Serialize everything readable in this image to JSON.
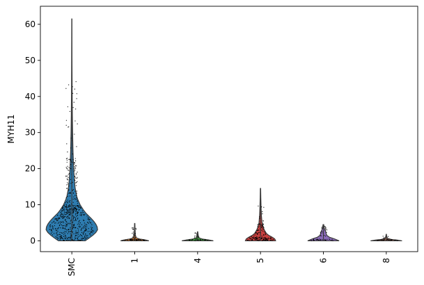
{
  "chart_data": {
    "type": "violin",
    "title": "",
    "xlabel": "",
    "ylabel": "MYH11",
    "ylim": [
      -3,
      65
    ],
    "yticks": [
      0,
      10,
      20,
      30,
      40,
      50,
      60
    ],
    "categories": [
      "SMC",
      "1",
      "4",
      "5",
      "6",
      "8"
    ],
    "grid": false,
    "series": [
      {
        "category": "SMC",
        "color": "#2e7cb0",
        "min": 0,
        "max": 61.5,
        "median": 3.8,
        "max_half_width": 0.82,
        "density": [
          [
            0,
            0.52
          ],
          [
            1,
            0.72
          ],
          [
            2,
            0.9
          ],
          [
            3,
            1.0
          ],
          [
            4,
            0.98
          ],
          [
            5,
            0.9
          ],
          [
            6,
            0.78
          ],
          [
            7,
            0.64
          ],
          [
            8,
            0.5
          ],
          [
            10,
            0.32
          ],
          [
            12,
            0.2
          ],
          [
            15,
            0.12
          ],
          [
            20,
            0.07
          ],
          [
            25,
            0.045
          ],
          [
            30,
            0.03
          ],
          [
            35,
            0.02
          ],
          [
            40,
            0.014
          ],
          [
            45,
            0.01
          ],
          [
            50,
            0.007
          ],
          [
            55,
            0.005
          ],
          [
            61.5,
            0.003
          ]
        ]
      },
      {
        "category": "1",
        "color": "#e8873a",
        "min": 0,
        "max": 4.8,
        "median": 0,
        "max_half_width": 0.45,
        "density": [
          [
            0,
            1.0
          ],
          [
            0.25,
            0.75
          ],
          [
            0.5,
            0.35
          ],
          [
            0.8,
            0.12
          ],
          [
            1.5,
            0.05
          ],
          [
            2.5,
            0.03
          ],
          [
            3.5,
            0.02
          ],
          [
            4.8,
            0.01
          ]
        ]
      },
      {
        "category": "4",
        "color": "#3f9b3f",
        "min": 0,
        "max": 2.5,
        "median": 0,
        "max_half_width": 0.5,
        "density": [
          [
            0,
            1.0
          ],
          [
            0.25,
            0.7
          ],
          [
            0.5,
            0.3
          ],
          [
            0.8,
            0.1
          ],
          [
            1.5,
            0.04
          ],
          [
            2.5,
            0.01
          ]
        ]
      },
      {
        "category": "5",
        "color": "#c8403f",
        "min": 0,
        "max": 14.5,
        "median": 0.6,
        "max_half_width": 0.48,
        "density": [
          [
            0,
            1.0
          ],
          [
            0.5,
            0.95
          ],
          [
            1,
            0.78
          ],
          [
            1.5,
            0.55
          ],
          [
            2,
            0.4
          ],
          [
            3,
            0.25
          ],
          [
            4,
            0.16
          ],
          [
            5,
            0.1
          ],
          [
            7,
            0.06
          ],
          [
            9,
            0.04
          ],
          [
            12,
            0.02
          ],
          [
            14.5,
            0.01
          ]
        ]
      },
      {
        "category": "6",
        "color": "#8a6bb8",
        "min": 0,
        "max": 4.5,
        "median": 0.3,
        "max_half_width": 0.5,
        "density": [
          [
            0,
            1.0
          ],
          [
            0.5,
            0.72
          ],
          [
            1,
            0.38
          ],
          [
            1.5,
            0.22
          ],
          [
            2,
            0.18
          ],
          [
            2.5,
            0.15
          ],
          [
            3,
            0.1
          ],
          [
            3.5,
            0.06
          ],
          [
            4.5,
            0.02
          ]
        ]
      },
      {
        "category": "8",
        "color": "#8c5a4b",
        "min": 0,
        "max": 1.8,
        "median": 0,
        "max_half_width": 0.5,
        "density": [
          [
            0,
            1.0
          ],
          [
            0.2,
            0.7
          ],
          [
            0.4,
            0.3
          ],
          [
            0.7,
            0.08
          ],
          [
            1.2,
            0.03
          ],
          [
            1.8,
            0.01
          ]
        ]
      }
    ],
    "points": {
      "SMC": {
        "count": 650,
        "profile": "smc"
      },
      "1": {
        "count": 70,
        "profile": "low"
      },
      "4": {
        "count": 40,
        "profile": "low"
      },
      "5": {
        "count": 170,
        "profile": "mid"
      },
      "6": {
        "count": 50,
        "profile": "low6"
      },
      "8": {
        "count": 35,
        "profile": "low"
      }
    }
  }
}
